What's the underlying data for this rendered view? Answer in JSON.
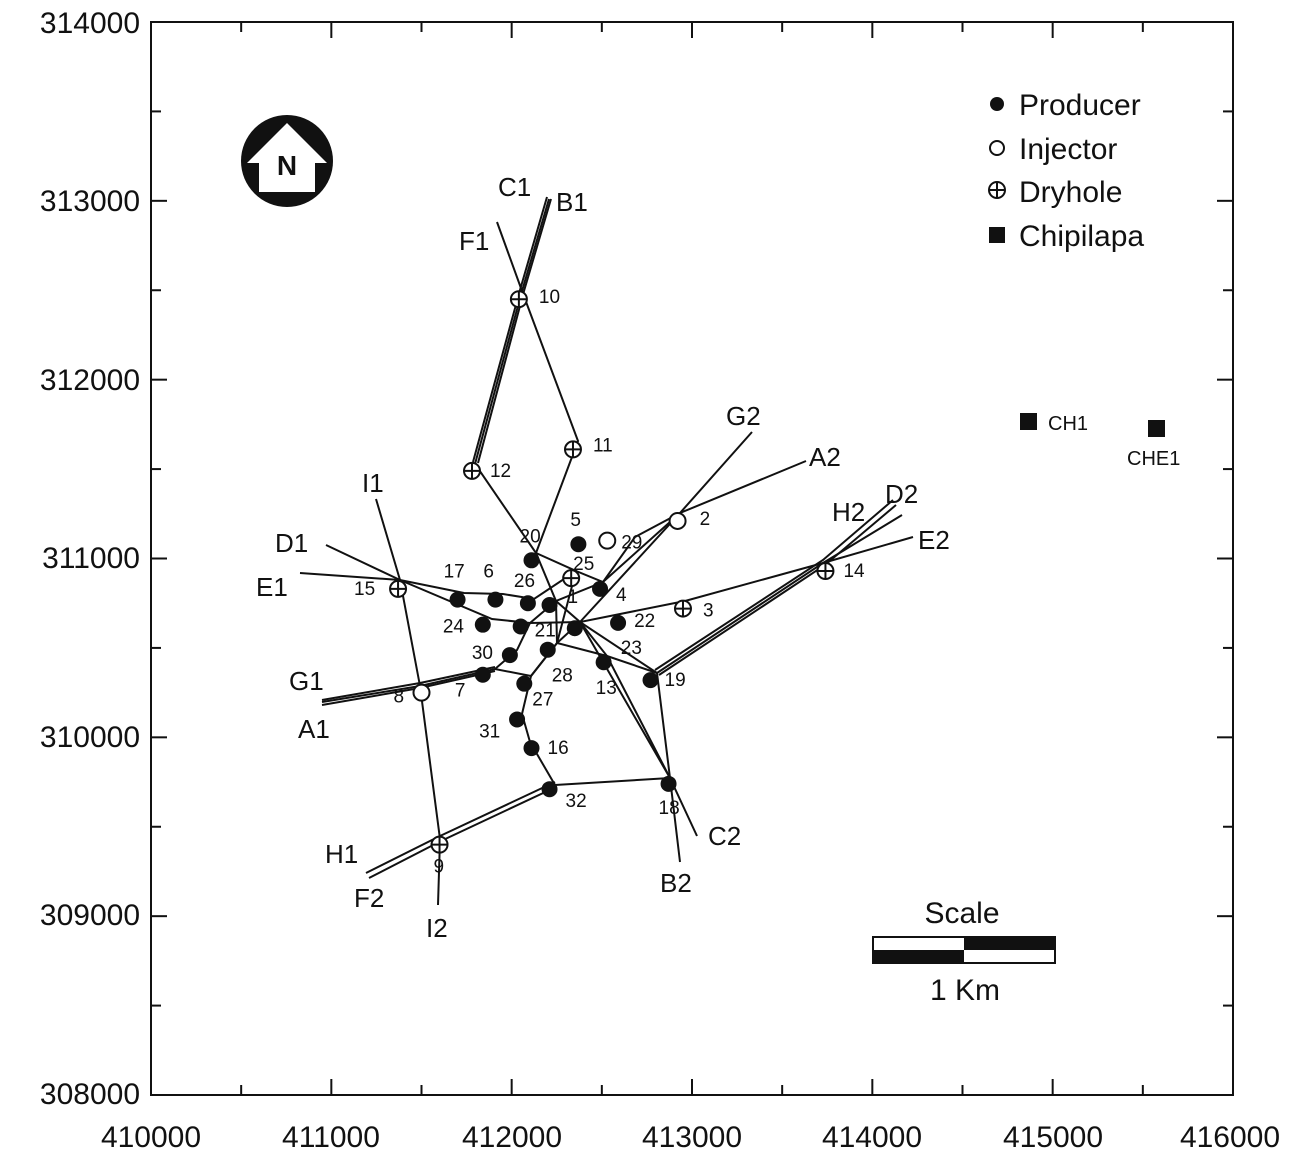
{
  "axes": {
    "x_ticks": [
      "410000",
      "411000",
      "412000",
      "413000",
      "414000",
      "415000",
      "416000"
    ],
    "y_ticks": [
      "314000",
      "313000",
      "312000",
      "311000",
      "310000",
      "309000",
      "308000"
    ]
  },
  "legend": {
    "producer": "Producer",
    "injector": "Injector",
    "dryhole": "Dryhole",
    "chipilapa": "Chipilapa"
  },
  "north_arrow": "N",
  "scale": {
    "title": "Scale",
    "label": "1 Km"
  },
  "chipilapa_wells": [
    {
      "label": "CH1",
      "x": 414880,
      "y": 311720
    },
    {
      "label": "CHE1",
      "x": 415580,
      "y": 311680
    }
  ],
  "wells": [
    {
      "id": "1",
      "label": "1",
      "type": "producer",
      "x": 412210,
      "y": 310740
    },
    {
      "id": "2",
      "label": "2",
      "type": "injector",
      "x": 412920,
      "y": 311210
    },
    {
      "id": "3",
      "label": "3",
      "type": "dryhole",
      "x": 412950,
      "y": 310720
    },
    {
      "id": "4",
      "label": "4",
      "type": "producer",
      "x": 412490,
      "y": 310830
    },
    {
      "id": "5",
      "label": "5",
      "type": "producer",
      "x": 412370,
      "y": 311080
    },
    {
      "id": "6",
      "label": "6",
      "type": "producer",
      "x": 411910,
      "y": 310770
    },
    {
      "id": "7",
      "label": "7",
      "type": "producer",
      "x": 411840,
      "y": 310350
    },
    {
      "id": "8",
      "label": "8",
      "type": "injector",
      "x": 411500,
      "y": 310250
    },
    {
      "id": "9",
      "label": "9",
      "type": "dryhole",
      "x": 411600,
      "y": 309400
    },
    {
      "id": "10",
      "label": "10",
      "type": "dryhole",
      "x": 412040,
      "y": 312450
    },
    {
      "id": "11",
      "label": "11",
      "type": "dryhole",
      "x": 412340,
      "y": 311610
    },
    {
      "id": "12",
      "label": "12",
      "type": "dryhole",
      "x": 411780,
      "y": 311490
    },
    {
      "id": "13",
      "label": "13",
      "type": "producer",
      "x": 412510,
      "y": 310420
    },
    {
      "id": "14",
      "label": "14",
      "type": "dryhole",
      "x": 413740,
      "y": 310930
    },
    {
      "id": "15",
      "label": "15",
      "type": "dryhole",
      "x": 411370,
      "y": 310830
    },
    {
      "id": "16",
      "label": "16",
      "type": "producer",
      "x": 412110,
      "y": 309940
    },
    {
      "id": "17",
      "label": "17",
      "type": "producer",
      "x": 411700,
      "y": 310770
    },
    {
      "id": "18",
      "label": "18",
      "type": "producer",
      "x": 412870,
      "y": 309740
    },
    {
      "id": "19",
      "label": "19",
      "type": "producer",
      "x": 412770,
      "y": 310320
    },
    {
      "id": "20",
      "label": "20",
      "type": "producer",
      "x": 412110,
      "y": 310990
    },
    {
      "id": "21",
      "label": "21",
      "type": "producer",
      "x": 412050,
      "y": 310620
    },
    {
      "id": "22",
      "label": "22",
      "type": "producer",
      "x": 412590,
      "y": 310640
    },
    {
      "id": "23",
      "label": "23",
      "type": "producer",
      "x": 412350,
      "y": 310610
    },
    {
      "id": "24",
      "label": "24",
      "type": "producer",
      "x": 411840,
      "y": 310630
    },
    {
      "id": "25",
      "label": "25",
      "type": "dryhole",
      "x": 412330,
      "y": 310890
    },
    {
      "id": "26",
      "label": "26",
      "type": "producer",
      "x": 412090,
      "y": 310750
    },
    {
      "id": "27",
      "label": "27",
      "type": "producer",
      "x": 412070,
      "y": 310300
    },
    {
      "id": "28",
      "label": "28",
      "type": "producer",
      "x": 412200,
      "y": 310490
    },
    {
      "id": "29",
      "label": "29",
      "type": "injector",
      "x": 412530,
      "y": 311100
    },
    {
      "id": "30",
      "label": "30",
      "type": "producer",
      "x": 411990,
      "y": 310460
    },
    {
      "id": "31",
      "label": "31",
      "type": "producer",
      "x": 412030,
      "y": 310100
    },
    {
      "id": "32",
      "label": "32",
      "type": "producer",
      "x": 412210,
      "y": 309710
    }
  ],
  "section_labels": [
    "A1",
    "A2",
    "B1",
    "B2",
    "C1",
    "C2",
    "D1",
    "D2",
    "E1",
    "E2",
    "F1",
    "F2",
    "G1",
    "G2",
    "H1",
    "H2",
    "I1",
    "I2"
  ]
}
